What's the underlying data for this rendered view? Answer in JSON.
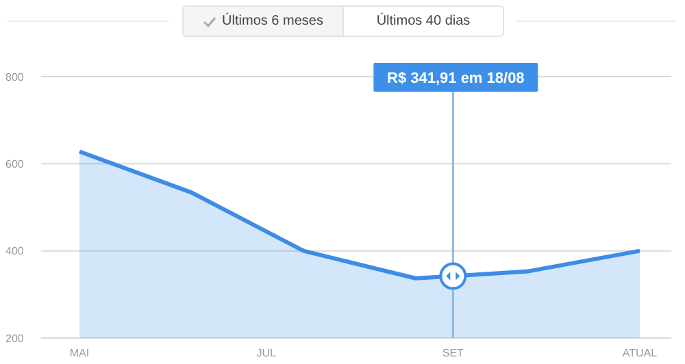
{
  "chart_data": {
    "type": "area",
    "categories": [
      "MAI",
      null,
      null,
      null,
      null,
      "JUL",
      null,
      null,
      null,
      null,
      "SET",
      null,
      null,
      null,
      null,
      "ATUAL"
    ],
    "series": [
      {
        "color": "#3d8ce6",
        "values": [
          628,
          null,
          null,
          534,
          null,
          null,
          400,
          null,
          null,
          337,
          342,
          null,
          353,
          null,
          null,
          400
        ]
      }
    ],
    "ylim": [
      200,
      800
    ],
    "yticks": [
      200,
      400,
      600,
      800
    ],
    "grid": "y",
    "legend": false,
    "marker": "none",
    "line_style": "solid",
    "ref_lines": [
      {
        "axis": "x",
        "value": "SET",
        "color": "#8fb8e0",
        "label": "R$ 341,91 em 18/08"
      }
    ],
    "annotations": [
      "Últimos 6 meses",
      "Últimos 40 dias"
    ]
  }
}
